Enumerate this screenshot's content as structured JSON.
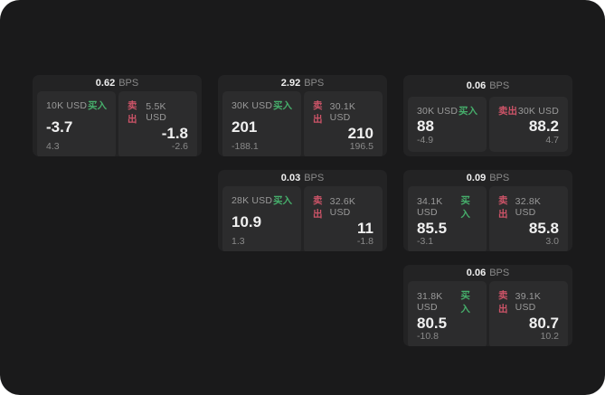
{
  "labels": {
    "bps_unit": "BPS",
    "buy": "买入",
    "sell": "卖出"
  },
  "colors": {
    "screen_bg": "#1a1a1b",
    "card_bg": "#232324",
    "panel_bg": "#2c2c2d",
    "text_primary": "#f0f0f0",
    "text_secondary": "#9a9a9a",
    "text_muted": "#8a8a8a",
    "buy_green": "#46ae6b",
    "sell_red": "#cd5468"
  },
  "cards": [
    {
      "bps": "0.62",
      "buy": {
        "amount": "10K USD",
        "price": "-3.7",
        "delta": "4.3"
      },
      "sell": {
        "amount": "5.5K USD",
        "price": "-1.8",
        "delta": "-2.6"
      }
    },
    {
      "bps": "2.92",
      "buy": {
        "amount": "30K USD",
        "price": "201",
        "delta": "-188.1"
      },
      "sell": {
        "amount": "30.1K USD",
        "price": "210",
        "delta": "196.5"
      }
    },
    {
      "bps": "0.06",
      "buy": {
        "amount": "30K USD",
        "price": "88",
        "delta": "-4.9"
      },
      "sell": {
        "amount": "30K USD",
        "price": "88.2",
        "delta": "4.7"
      }
    },
    {
      "bps": "0.03",
      "buy": {
        "amount": "28K USD",
        "price": "10.9",
        "delta": "1.3"
      },
      "sell": {
        "amount": "32.6K USD",
        "price": "11",
        "delta": "-1.8"
      }
    },
    {
      "bps": "0.09",
      "buy": {
        "amount": "34.1K USD",
        "price": "85.5",
        "delta": "-3.1"
      },
      "sell": {
        "amount": "32.8K USD",
        "price": "85.8",
        "delta": "3.0"
      }
    },
    {
      "bps": "0.06",
      "buy": {
        "amount": "31.8K USD",
        "price": "80.5",
        "delta": "-10.8"
      },
      "sell": {
        "amount": "39.1K USD",
        "price": "80.7",
        "delta": "10.2"
      }
    }
  ]
}
